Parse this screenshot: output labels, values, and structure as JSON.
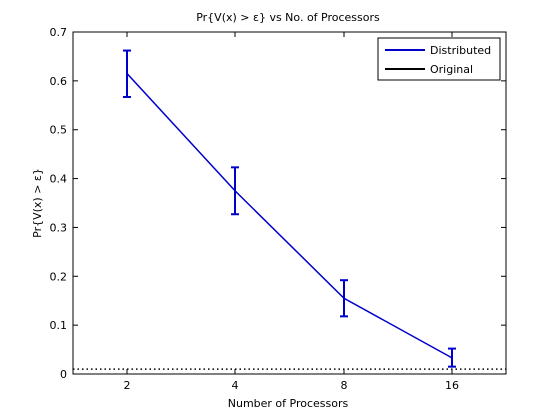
{
  "chart_data": {
    "type": "line",
    "title": "Pr{V(x) > ε} vs No. of Processors",
    "xlabel": "Number of Processors",
    "ylabel": "Pr{V(x) > ε}",
    "categories": [
      "2",
      "4",
      "8",
      "16"
    ],
    "ylim": [
      0,
      0.7
    ],
    "yticks": [
      "0",
      "0.1",
      "0.2",
      "0.3",
      "0.4",
      "0.5",
      "0.6",
      "0.7"
    ],
    "grid": false,
    "legend_position": "top-right",
    "series": [
      {
        "name": "Distributed",
        "color": "#0000cc",
        "style": "solid-with-errorbars",
        "values": [
          0.615,
          0.375,
          0.155,
          0.033
        ],
        "err_low": [
          0.567,
          0.327,
          0.118,
          0.015
        ],
        "err_high": [
          0.662,
          0.423,
          0.192,
          0.052
        ]
      },
      {
        "name": "Original",
        "color": "#000000",
        "style": "dotted-horizontal",
        "value": 0.01
      }
    ]
  }
}
